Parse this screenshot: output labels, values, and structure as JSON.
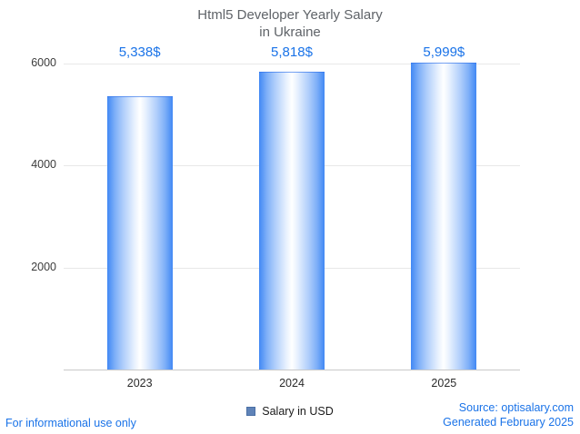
{
  "title": {
    "line1": "Html5 Developer Yearly Salary",
    "line2": "in Ukraine"
  },
  "legend": {
    "label": "Salary in USD",
    "swatch_color": "#5f83b8"
  },
  "footer": {
    "disclaimer": "For informational use only",
    "source": "Source: optisalary.com",
    "generated": "Generated February 2025"
  },
  "colors": {
    "accent_blue": "#1a73e8",
    "bar_edge": "#4188f4",
    "bar_center": "#ffffff",
    "grid": "#e8e8e8",
    "axis": "#c9c9c9",
    "title_text": "#5f6368",
    "tick_text": "#3c3c3c"
  },
  "chart_data": {
    "type": "bar",
    "title": "Html5 Developer Yearly Salary in Ukraine",
    "categories": [
      "2023",
      "2024",
      "2025"
    ],
    "values": [
      5338,
      5818,
      5999
    ],
    "value_labels": [
      "5,338$",
      "5,818$",
      "5,999$"
    ],
    "series_name": "Salary in USD",
    "xlabel": "",
    "ylabel": "",
    "ylim": [
      0,
      6000
    ],
    "yticks": [
      2000,
      4000,
      6000
    ],
    "grid": true,
    "legend_position": "bottom"
  }
}
